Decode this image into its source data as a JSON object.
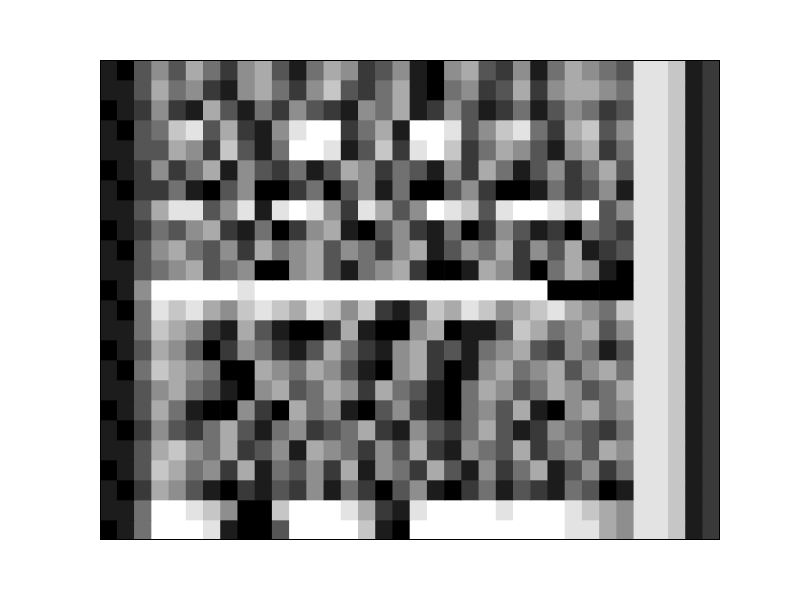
{
  "chart_data": {
    "type": "heatmap",
    "tick_labels": false,
    "cells": [
      [
        1,
        0,
        3,
        5,
        3,
        6,
        4,
        2,
        5,
        6,
        3,
        1,
        4,
        6,
        5,
        2,
        3,
        5,
        1,
        0,
        5,
        6,
        3,
        2,
        5,
        1,
        4,
        6,
        5,
        4,
        3,
        8,
        8,
        7,
        1,
        2
      ],
      [
        1,
        1,
        3,
        6,
        4,
        5,
        2,
        1,
        5,
        6,
        4,
        2,
        5,
        7,
        3,
        2,
        4,
        6,
        1,
        0,
        4,
        5,
        2,
        3,
        6,
        2,
        5,
        6,
        6,
        5,
        4,
        8,
        8,
        7,
        1,
        2
      ],
      [
        0,
        1,
        2,
        5,
        2,
        1,
        6,
        3,
        1,
        4,
        2,
        5,
        3,
        2,
        1,
        5,
        4,
        6,
        1,
        2,
        5,
        3,
        1,
        2,
        4,
        1,
        3,
        5,
        4,
        2,
        3,
        8,
        8,
        7,
        1,
        2
      ],
      [
        1,
        0,
        3,
        4,
        7,
        8,
        3,
        6,
        2,
        1,
        5,
        8,
        9,
        9,
        2,
        4,
        6,
        1,
        9,
        9,
        8,
        3,
        5,
        7,
        8,
        4,
        2,
        6,
        7,
        3,
        5,
        8,
        8,
        7,
        1,
        2
      ],
      [
        1,
        1,
        3,
        3,
        6,
        5,
        2,
        7,
        3,
        1,
        4,
        9,
        9,
        8,
        1,
        3,
        7,
        2,
        8,
        9,
        7,
        2,
        4,
        6,
        5,
        3,
        1,
        5,
        6,
        2,
        4,
        8,
        8,
        7,
        1,
        2
      ],
      [
        0,
        1,
        2,
        5,
        2,
        4,
        6,
        1,
        5,
        3,
        2,
        4,
        1,
        3,
        6,
        5,
        2,
        4,
        3,
        1,
        5,
        2,
        6,
        4,
        1,
        3,
        5,
        2,
        4,
        6,
        3,
        8,
        8,
        7,
        1,
        2
      ],
      [
        1,
        0,
        2,
        2,
        4,
        1,
        0,
        3,
        5,
        0,
        0,
        2,
        4,
        0,
        3,
        5,
        1,
        4,
        0,
        0,
        3,
        5,
        2,
        0,
        0,
        1,
        4,
        2,
        3,
        5,
        1,
        8,
        8,
        7,
        1,
        2
      ],
      [
        1,
        1,
        3,
        6,
        8,
        8,
        3,
        5,
        8,
        1,
        8,
        9,
        8,
        5,
        2,
        8,
        6,
        3,
        5,
        9,
        8,
        7,
        3,
        8,
        9,
        9,
        8,
        7,
        9,
        3,
        5,
        8,
        8,
        7,
        1,
        2
      ],
      [
        0,
        1,
        2,
        4,
        3,
        5,
        6,
        2,
        1,
        4,
        0,
        2,
        5,
        6,
        1,
        0,
        3,
        5,
        2,
        1,
        4,
        0,
        2,
        5,
        3,
        1,
        2,
        0,
        4,
        3,
        2,
        8,
        8,
        7,
        1,
        2
      ],
      [
        1,
        0,
        3,
        5,
        6,
        4,
        3,
        5,
        2,
        6,
        4,
        5,
        6,
        3,
        5,
        4,
        2,
        5,
        6,
        1,
        3,
        5,
        4,
        6,
        2,
        5,
        3,
        6,
        1,
        2,
        3,
        8,
        8,
        7,
        1,
        2
      ],
      [
        1,
        1,
        3,
        4,
        5,
        6,
        3,
        4,
        5,
        0,
        0,
        5,
        6,
        3,
        1,
        4,
        5,
        6,
        2,
        0,
        0,
        1,
        6,
        5,
        2,
        0,
        4,
        6,
        5,
        1,
        0,
        8,
        8,
        7,
        1,
        2
      ],
      [
        0,
        1,
        5,
        9,
        9,
        9,
        9,
        9,
        8,
        9,
        9,
        9,
        9,
        9,
        9,
        9,
        9,
        9,
        9,
        9,
        9,
        9,
        9,
        9,
        9,
        9,
        0,
        0,
        0,
        0,
        0,
        8,
        8,
        7,
        1,
        2
      ],
      [
        1,
        0,
        4,
        8,
        7,
        8,
        6,
        5,
        7,
        8,
        7,
        6,
        8,
        7,
        5,
        7,
        2,
        1,
        3,
        7,
        6,
        8,
        7,
        5,
        6,
        7,
        8,
        6,
        5,
        4,
        7,
        8,
        8,
        7,
        1,
        2
      ],
      [
        1,
        1,
        4,
        7,
        6,
        5,
        2,
        1,
        6,
        3,
        1,
        0,
        0,
        2,
        6,
        1,
        0,
        0,
        5,
        6,
        0,
        1,
        1,
        3,
        7,
        6,
        4,
        5,
        6,
        3,
        5,
        8,
        8,
        7,
        1,
        2
      ],
      [
        0,
        1,
        3,
        6,
        5,
        3,
        0,
        2,
        5,
        4,
        2,
        1,
        3,
        6,
        4,
        2,
        1,
        5,
        6,
        2,
        3,
        1,
        4,
        5,
        6,
        3,
        2,
        5,
        4,
        1,
        3,
        8,
        8,
        7,
        1,
        2
      ],
      [
        1,
        0,
        4,
        7,
        6,
        5,
        4,
        0,
        0,
        6,
        5,
        4,
        6,
        5,
        3,
        1,
        0,
        5,
        6,
        2,
        0,
        1,
        5,
        6,
        4,
        5,
        6,
        3,
        5,
        6,
        4,
        8,
        8,
        7,
        1,
        2
      ],
      [
        1,
        1,
        3,
        5,
        6,
        4,
        3,
        1,
        0,
        5,
        6,
        3,
        4,
        6,
        5,
        2,
        6,
        4,
        3,
        1,
        0,
        4,
        6,
        5,
        3,
        4,
        6,
        5,
        3,
        4,
        6,
        8,
        8,
        7,
        1,
        2
      ],
      [
        0,
        1,
        3,
        6,
        4,
        1,
        0,
        0,
        5,
        2,
        0,
        6,
        4,
        5,
        1,
        0,
        3,
        5,
        2,
        1,
        0,
        4,
        5,
        3,
        6,
        1,
        0,
        5,
        6,
        4,
        5,
        8,
        8,
        7,
        1,
        2
      ],
      [
        1,
        0,
        2,
        5,
        3,
        2,
        4,
        6,
        3,
        1,
        4,
        5,
        2,
        3,
        4,
        6,
        2,
        1,
        5,
        3,
        2,
        4,
        6,
        3,
        1,
        2,
        5,
        4,
        3,
        2,
        4,
        8,
        8,
        7,
        1,
        2
      ],
      [
        1,
        1,
        3,
        6,
        7,
        5,
        4,
        6,
        2,
        3,
        5,
        1,
        6,
        5,
        4,
        2,
        5,
        3,
        6,
        2,
        1,
        5,
        4,
        3,
        6,
        2,
        4,
        5,
        3,
        6,
        5,
        8,
        8,
        7,
        1,
        2
      ],
      [
        0,
        1,
        3,
        7,
        6,
        4,
        5,
        2,
        6,
        1,
        4,
        3,
        5,
        2,
        6,
        1,
        5,
        4,
        2,
        6,
        3,
        1,
        5,
        2,
        4,
        6,
        1,
        3,
        5,
        2,
        4,
        8,
        8,
        7,
        1,
        2
      ],
      [
        1,
        0,
        2,
        6,
        5,
        3,
        1,
        0,
        2,
        1,
        3,
        2,
        5,
        1,
        4,
        2,
        0,
        3,
        5,
        1,
        0,
        2,
        4,
        1,
        3,
        2,
        1,
        4,
        3,
        0,
        1,
        8,
        8,
        7,
        1,
        2
      ],
      [
        1,
        1,
        4,
        9,
        9,
        8,
        7,
        5,
        0,
        0,
        7,
        9,
        9,
        9,
        8,
        6,
        2,
        1,
        8,
        9,
        9,
        9,
        9,
        8,
        9,
        9,
        9,
        8,
        7,
        6,
        5,
        8,
        8,
        7,
        1,
        2
      ],
      [
        0,
        1,
        4,
        9,
        9,
        9,
        8,
        1,
        0,
        0,
        3,
        9,
        9,
        9,
        9,
        7,
        1,
        0,
        9,
        9,
        9,
        9,
        9,
        9,
        9,
        9,
        9,
        8,
        8,
        6,
        5,
        8,
        8,
        7,
        1,
        2
      ]
    ]
  }
}
